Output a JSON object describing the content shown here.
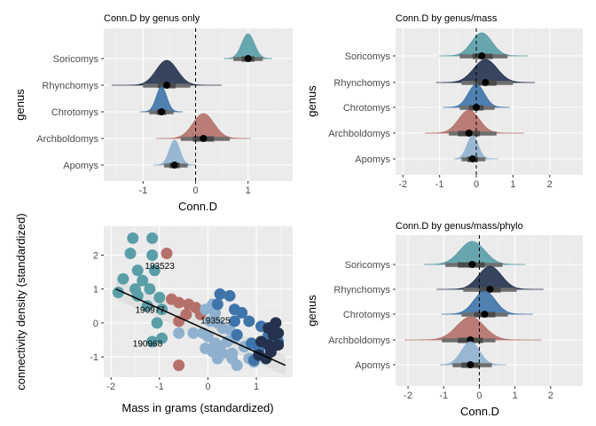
{
  "chart_data": [
    {
      "type": "density-ridges",
      "title": "Conn.D by genus only",
      "xlabel": "Conn.D",
      "ylabel": "genus",
      "xlim": [
        -1.75,
        1.85
      ],
      "xticks": [
        -1,
        0,
        1
      ],
      "reference_line_x": 0,
      "rows": [
        {
          "genus": "Soricomys",
          "color": "#5a9ea8",
          "mean": 1.0,
          "sd": 0.12,
          "ci66": [
            0.88,
            1.12
          ],
          "ci95": [
            0.72,
            1.28
          ],
          "range": [
            0.55,
            1.45
          ]
        },
        {
          "genus": "Rhynchomys",
          "color": "#24324f",
          "mean": -0.55,
          "sd": 0.2,
          "ci66": [
            -0.72,
            -0.38
          ],
          "ci95": [
            -1.0,
            -0.1
          ],
          "range": [
            -1.6,
            0.5
          ]
        },
        {
          "genus": "Chrotomys",
          "color": "#3e74aa",
          "mean": -0.65,
          "sd": 0.1,
          "ci66": [
            -0.74,
            -0.56
          ],
          "ci95": [
            -0.88,
            -0.42
          ],
          "range": [
            -1.05,
            -0.25
          ]
        },
        {
          "genus": "Archboldomys",
          "color": "#b5706a",
          "mean": 0.15,
          "sd": 0.2,
          "ci66": [
            -0.05,
            0.35
          ],
          "ci95": [
            -0.28,
            0.65
          ],
          "range": [
            -0.75,
            1.05
          ]
        },
        {
          "genus": "Apomys",
          "color": "#8fb1cf",
          "mean": -0.4,
          "sd": 0.1,
          "ci66": [
            -0.5,
            -0.3
          ],
          "ci95": [
            -0.6,
            -0.15
          ],
          "range": [
            -0.8,
            0.0
          ]
        }
      ]
    },
    {
      "type": "density-ridges",
      "title": "Conn.D by genus/mass",
      "xlabel": "",
      "ylabel": "genus",
      "xlim": [
        -2.2,
        2.9
      ],
      "xticks": [
        -2,
        -1,
        0,
        1,
        2
      ],
      "reference_line_x": 0,
      "rows": [
        {
          "genus": "Soricomys",
          "color": "#5a9ea8",
          "mean": 0.15,
          "sd": 0.28,
          "ci66": [
            -0.1,
            0.45
          ],
          "ci95": [
            -0.45,
            0.85
          ],
          "range": [
            -1.0,
            1.4
          ]
        },
        {
          "genus": "Rhynchomys",
          "color": "#24324f",
          "mean": 0.25,
          "sd": 0.32,
          "ci66": [
            -0.05,
            0.55
          ],
          "ci95": [
            -0.4,
            1.0
          ],
          "range": [
            -1.1,
            1.6
          ]
        },
        {
          "genus": "Chrotomys",
          "color": "#3e74aa",
          "mean": 0.0,
          "sd": 0.22,
          "ci66": [
            -0.2,
            0.2
          ],
          "ci95": [
            -0.45,
            0.5
          ],
          "range": [
            -0.9,
            0.9
          ]
        },
        {
          "genus": "Archboldomys",
          "color": "#b5706a",
          "mean": -0.2,
          "sd": 0.28,
          "ci66": [
            -0.5,
            0.1
          ],
          "ci95": [
            -0.75,
            0.55
          ],
          "range": [
            -1.4,
            1.3
          ]
        },
        {
          "genus": "Apomys",
          "color": "#8fb1cf",
          "mean": -0.1,
          "sd": 0.15,
          "ci66": [
            -0.25,
            0.05
          ],
          "ci95": [
            -0.4,
            0.25
          ],
          "range": [
            -0.6,
            0.6
          ]
        }
      ]
    },
    {
      "type": "scatter",
      "title": "",
      "xlabel": "Mass in grams (standardized)",
      "ylabel": "connectivity density (standardized)",
      "xlim": [
        -2.15,
        1.75
      ],
      "ylim": [
        -1.6,
        2.85
      ],
      "xticks": [
        -2,
        -1,
        0,
        1
      ],
      "yticks": [
        -1,
        0,
        1,
        2
      ],
      "regression": {
        "x": [
          -1.9,
          1.6
        ],
        "y": [
          1.0,
          -1.25
        ]
      },
      "labels": [
        {
          "text": "193523",
          "x": -1.3,
          "y": 1.6
        },
        {
          "text": "190977",
          "x": -1.5,
          "y": 0.3
        },
        {
          "text": "193525",
          "x": -0.15,
          "y": -0.02
        },
        {
          "text": "190968",
          "x": -1.55,
          "y": -0.7
        }
      ],
      "series": [
        {
          "color": "#5a9ea8",
          "points": [
            [
              -1.55,
              2.5
            ],
            [
              -1.15,
              2.5
            ],
            [
              -1.6,
              2.05
            ],
            [
              -1.15,
              2.0
            ],
            [
              -1.45,
              1.55
            ],
            [
              -1.1,
              1.55
            ],
            [
              -1.75,
              1.3
            ],
            [
              -1.35,
              1.25
            ],
            [
              -1.5,
              1.0
            ],
            [
              -1.2,
              1.0
            ],
            [
              -1.85,
              0.9
            ],
            [
              -1.45,
              0.8
            ],
            [
              -1.0,
              0.75
            ],
            [
              -1.25,
              0.5
            ],
            [
              -0.95,
              0.4
            ],
            [
              -1.05,
              0.0
            ],
            [
              -1.15,
              -0.55
            ],
            [
              -0.95,
              -0.45
            ]
          ]
        },
        {
          "color": "#b5706a",
          "points": [
            [
              -0.85,
              2.05
            ],
            [
              -0.75,
              0.7
            ],
            [
              -0.6,
              0.6
            ],
            [
              -0.4,
              0.55
            ],
            [
              -0.25,
              0.45
            ],
            [
              -0.45,
              0.25
            ],
            [
              -0.15,
              0.25
            ],
            [
              -0.6,
              0.05
            ],
            [
              -0.6,
              -1.25
            ]
          ]
        },
        {
          "color": "#8fb1cf",
          "points": [
            [
              -0.6,
              -0.3
            ],
            [
              -0.3,
              -0.3
            ],
            [
              -0.1,
              -0.3
            ],
            [
              -0.05,
              0.4
            ],
            [
              0.1,
              0.55
            ],
            [
              0.15,
              0.3
            ],
            [
              0.05,
              0.05
            ],
            [
              0.2,
              0.0
            ],
            [
              0.3,
              -0.15
            ],
            [
              0.45,
              -0.2
            ],
            [
              0.0,
              -0.4
            ],
            [
              0.15,
              -0.6
            ],
            [
              0.25,
              -0.7
            ],
            [
              0.4,
              -0.55
            ],
            [
              0.55,
              -0.45
            ],
            [
              -0.05,
              -0.75
            ],
            [
              0.1,
              -0.85
            ],
            [
              0.3,
              -0.9
            ],
            [
              0.5,
              -0.9
            ],
            [
              0.75,
              -0.7
            ],
            [
              0.2,
              -1.05
            ],
            [
              0.5,
              -1.05
            ],
            [
              0.85,
              -1.05
            ],
            [
              0.6,
              -1.25
            ],
            [
              0.95,
              -1.15
            ]
          ]
        },
        {
          "color": "#3e74aa",
          "points": [
            [
              0.25,
              0.85
            ],
            [
              0.45,
              0.8
            ],
            [
              0.2,
              0.55
            ],
            [
              0.55,
              0.4
            ],
            [
              0.7,
              0.3
            ],
            [
              0.55,
              0.05
            ],
            [
              0.85,
              0.05
            ],
            [
              0.6,
              -0.35
            ],
            [
              0.9,
              -0.6
            ],
            [
              1.1,
              -0.1
            ],
            [
              1.25,
              -0.35
            ],
            [
              1.05,
              -0.8
            ],
            [
              1.3,
              -0.85
            ],
            [
              1.45,
              -0.55
            ],
            [
              0.95,
              -1.1
            ]
          ]
        },
        {
          "color": "#24324f",
          "points": [
            [
              1.25,
              -0.15
            ],
            [
              1.35,
              -0.35
            ],
            [
              1.1,
              -0.55
            ],
            [
              1.25,
              -0.65
            ],
            [
              1.3,
              -0.85
            ],
            [
              1.05,
              -0.95
            ],
            [
              1.2,
              -1.05
            ],
            [
              1.45,
              -0.65
            ],
            [
              1.4,
              0.0
            ],
            [
              1.45,
              -0.3
            ]
          ]
        }
      ]
    },
    {
      "type": "density-ridges",
      "title": "Conn.D by genus/mass/phylo",
      "xlabel": "Conn.D",
      "ylabel": "genus",
      "xlim": [
        -2.35,
        2.9
      ],
      "xticks": [
        -2,
        -1,
        0,
        1,
        2
      ],
      "reference_line_x": 0,
      "rows": [
        {
          "genus": "Soricomys",
          "color": "#5a9ea8",
          "mean": -0.2,
          "sd": 0.35,
          "ci66": [
            -0.6,
            0.15
          ],
          "ci95": [
            -0.95,
            0.65
          ],
          "range": [
            -1.55,
            1.3
          ]
        },
        {
          "genus": "Rhynchomys",
          "color": "#24324f",
          "mean": 0.3,
          "sd": 0.32,
          "ci66": [
            0.0,
            0.6
          ],
          "ci95": [
            -0.45,
            1.05
          ],
          "range": [
            -1.2,
            1.8
          ]
        },
        {
          "genus": "Chrotomys",
          "color": "#3e74aa",
          "mean": 0.15,
          "sd": 0.3,
          "ci66": [
            -0.15,
            0.45
          ],
          "ci95": [
            -0.5,
            0.8
          ],
          "range": [
            -1.05,
            1.5
          ]
        },
        {
          "genus": "Archboldomys",
          "color": "#b5706a",
          "mean": -0.25,
          "sd": 0.38,
          "ci66": [
            -0.6,
            0.1
          ],
          "ci95": [
            -1.05,
            0.45
          ],
          "range": [
            -2.1,
            1.75
          ]
        },
        {
          "genus": "Apomys",
          "color": "#8fb1cf",
          "mean": -0.25,
          "sd": 0.25,
          "ci66": [
            -0.5,
            0.0
          ],
          "ci95": [
            -0.75,
            0.35
          ],
          "range": [
            -1.1,
            0.75
          ]
        }
      ]
    }
  ]
}
